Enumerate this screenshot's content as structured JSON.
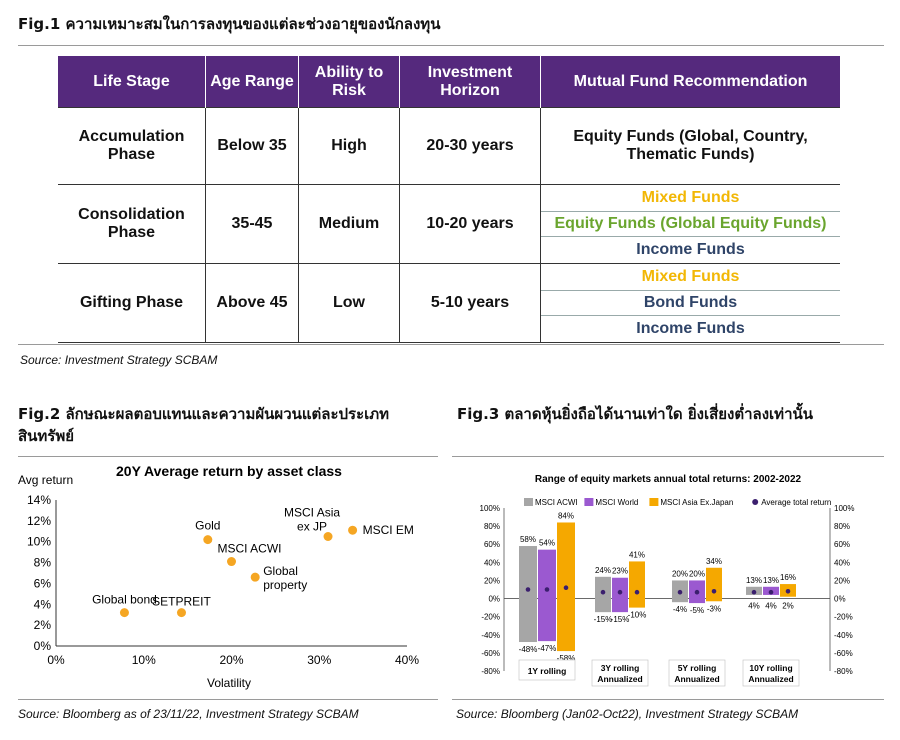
{
  "fig1": {
    "title": "Fig.1 ความเหมาะสมในการลงทุนของแต่ละช่วงอายุของนักลงทุน",
    "headers": [
      "Life Stage",
      "Age Range",
      "Ability to Risk",
      "Investment Horizon",
      "Mutual Fund Recommendation"
    ],
    "rows": [
      {
        "stage": "Accumulation Phase",
        "age": "Below 35",
        "risk": "High",
        "horizon": "20-30 years",
        "funds": [
          {
            "text": "Equity Funds (Global, Country, Thematic Funds)",
            "color": "green"
          }
        ]
      },
      {
        "stage": "Consolidation Phase",
        "age": "35-45",
        "risk": "Medium",
        "horizon": "10-20 years",
        "funds": [
          {
            "text": "Mixed Funds",
            "color": "yellow"
          },
          {
            "text": "Equity Funds (Global Equity Funds)",
            "color": "green"
          },
          {
            "text": "Income Funds",
            "color": "navy"
          }
        ]
      },
      {
        "stage": "Gifting Phase",
        "age": "Above 45",
        "risk": "Low",
        "horizon": "5-10 years",
        "funds": [
          {
            "text": "Mixed Funds",
            "color": "yellow"
          },
          {
            "text": "Bond Funds",
            "color": "navy"
          },
          {
            "text": "Income Funds",
            "color": "navy"
          }
        ]
      }
    ],
    "source": "Source: Investment Strategy SCBAM",
    "colors": {
      "header_bg": "#55297d",
      "green": "#6aa52e",
      "yellow": "#f2b705",
      "navy": "#2f4468"
    }
  },
  "fig2": {
    "title_line1": "Fig.2 ลักษณะผลตอบแทนและความผันผวนแต่ละประเภท",
    "title_line2": "สินทรัพย์",
    "source": "Source: Bloomberg as of 23/11/22, Investment Strategy SCBAM"
  },
  "fig3": {
    "title": "Fig.3 ตลาดหุ้นยิ่งถือได้นานเท่าใด ยิ่งเสี่ยงต่ำลงเท่านั้น",
    "source": "Source: Bloomberg (Jan02-Oct22), Investment Strategy SCBAM"
  },
  "chart_data": [
    {
      "type": "scatter",
      "title": "20Y Average return by asset class",
      "xlabel": "Volatility",
      "ylabel": "Avg return",
      "xlim": [
        0,
        40
      ],
      "ylim": [
        0,
        14
      ],
      "x_ticks": [
        "0%",
        "10%",
        "20%",
        "30%",
        "40%"
      ],
      "y_ticks": [
        "0%",
        "2%",
        "4%",
        "6%",
        "8%",
        "10%",
        "12%",
        "14%"
      ],
      "grid": false,
      "color": "#f5a623",
      "points": [
        {
          "label": "Global bond",
          "x": 7.8,
          "y": 3.2
        },
        {
          "label": "SETPREIT",
          "x": 14.3,
          "y": 3.2
        },
        {
          "label": "Gold",
          "x": 17.3,
          "y": 10.2
        },
        {
          "label": "MSCI ACWI",
          "x": 20.0,
          "y": 8.1
        },
        {
          "label": "Global property",
          "x": 22.7,
          "y": 6.6
        },
        {
          "label": "MSCI Asia ex JP",
          "x": 31.0,
          "y": 10.5
        },
        {
          "label": "MSCI EM",
          "x": 33.8,
          "y": 11.1
        }
      ]
    },
    {
      "type": "bar",
      "title": "Range of equity markets annual total returns: 2002-2022",
      "ylim": [
        -80,
        100
      ],
      "y_ticks": [
        "100%",
        "80%",
        "60%",
        "40%",
        "20%",
        "0%",
        "-20%",
        "-40%",
        "-60%",
        "-80%"
      ],
      "grid": false,
      "legend_position": "top",
      "categories": [
        "1Y rolling",
        "3Y rolling Annualized",
        "5Y rolling Annualized",
        "10Y rolling Annualized"
      ],
      "series": [
        {
          "name": "MSCI ACWI",
          "color": "#a6a6a6",
          "max": [
            58,
            24,
            20,
            13
          ],
          "min": [
            -48,
            -15,
            -4,
            4
          ],
          "max_labels": [
            "58%",
            "24%",
            "20%",
            "13%"
          ],
          "min_labels": [
            "-48%",
            "-15%",
            "-4%",
            "4%"
          ]
        },
        {
          "name": "MSCI World",
          "color": "#9b59d0",
          "max": [
            54,
            23,
            20,
            13
          ],
          "min": [
            -47,
            -15,
            -5,
            4
          ],
          "max_labels": [
            "54%",
            "23%",
            "20%",
            "13%"
          ],
          "min_labels": [
            "-47%",
            "-15%",
            "-5%",
            "4%"
          ]
        },
        {
          "name": "MSCI Asia Ex.Japan",
          "color": "#f5a800",
          "max": [
            84,
            41,
            34,
            16
          ],
          "min": [
            -58,
            -10,
            -3,
            2
          ],
          "max_labels": [
            "84%",
            "41%",
            "34%",
            "16%"
          ],
          "min_labels": [
            "-58%",
            "-10%",
            "-3%",
            "2%"
          ]
        }
      ],
      "average": {
        "name": "Average total return",
        "color": "#3b1f6e",
        "values": [
          [
            10,
            10,
            12
          ],
          [
            7,
            7,
            7
          ],
          [
            7,
            7,
            8
          ],
          [
            7,
            7,
            8
          ]
        ]
      }
    }
  ]
}
